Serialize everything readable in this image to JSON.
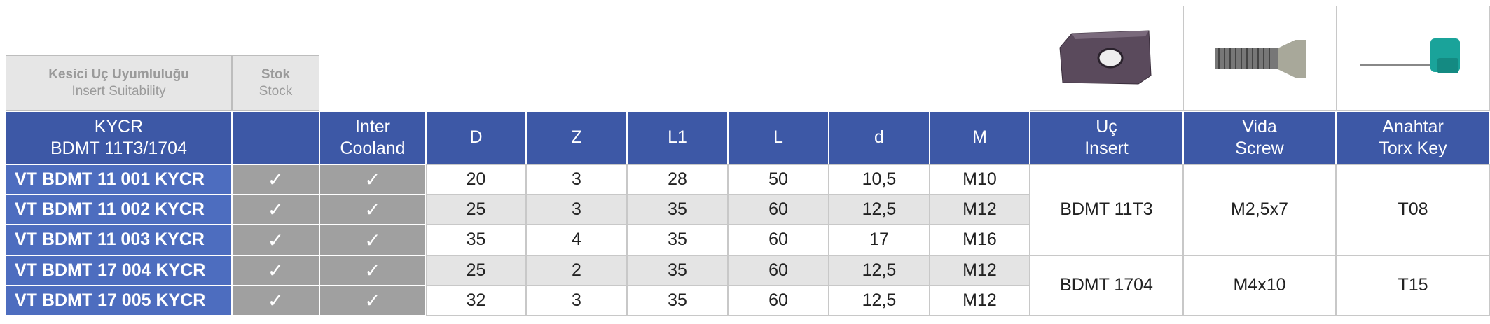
{
  "suitability": {
    "title_tr": "Kesici Uç Uyumluluğu",
    "title_en": "Insert Suitability",
    "stock_tr": "Stok",
    "stock_en": "Stock"
  },
  "header": {
    "series": [
      "KYCR",
      "BDMT 11T3/1704"
    ],
    "inter_cooland": [
      "Inter",
      "Cooland"
    ],
    "columns": [
      "D",
      "Z",
      "L1",
      "L",
      "d",
      "M"
    ],
    "accessories": [
      [
        "Uç",
        "Insert"
      ],
      [
        "Vida",
        "Screw"
      ],
      [
        "Anahtar",
        "Torx Key"
      ]
    ]
  },
  "rows": [
    {
      "code": "VT BDMT 11 001 KYCR",
      "stock": "✓",
      "cooland": "✓",
      "values": [
        "20",
        "3",
        "28",
        "50",
        "10,5",
        "M10"
      ]
    },
    {
      "code": "VT BDMT 11 002 KYCR",
      "stock": "✓",
      "cooland": "✓",
      "values": [
        "25",
        "3",
        "35",
        "60",
        "12,5",
        "M12"
      ]
    },
    {
      "code": "VT BDMT 11 003 KYCR",
      "stock": "✓",
      "cooland": "✓",
      "values": [
        "35",
        "4",
        "35",
        "60",
        "17",
        "M16"
      ]
    },
    {
      "code": "VT BDMT 17 004 KYCR",
      "stock": "✓",
      "cooland": "✓",
      "values": [
        "25",
        "2",
        "35",
        "60",
        "12,5",
        "M12"
      ]
    },
    {
      "code": "VT BDMT 17 005 KYCR",
      "stock": "✓",
      "cooland": "✓",
      "values": [
        "32",
        "3",
        "35",
        "60",
        "12,5",
        "M12"
      ]
    }
  ],
  "accessory_groups": [
    {
      "insert": "BDMT 11T3",
      "screw": "M2,5x7",
      "key": "T08"
    },
    {
      "insert": "BDMT 1704",
      "screw": "M4x10",
      "key": "T15"
    }
  ]
}
